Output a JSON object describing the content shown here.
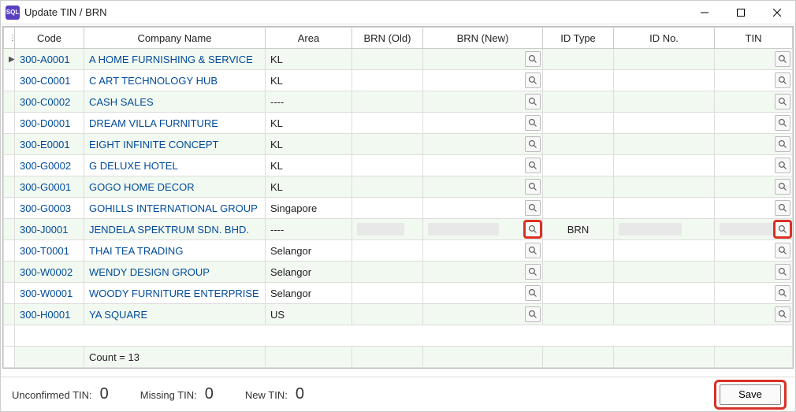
{
  "window": {
    "title": "Update TIN / BRN",
    "app_icon_text": "SQL"
  },
  "columns": {
    "code": "Code",
    "company": "Company Name",
    "area": "Area",
    "brn_old": "BRN (Old)",
    "brn_new": "BRN (New)",
    "id_type": "ID Type",
    "id_no": "ID No.",
    "tin": "TIN"
  },
  "rows": [
    {
      "code": "300-A0001",
      "company": "A HOME FURNISHING & SERVICE",
      "area": "KL",
      "brn_old": "",
      "brn_new": "",
      "id_type": "",
      "id_no": "",
      "tin": "",
      "highlighted": false,
      "has_blur": false
    },
    {
      "code": "300-C0001",
      "company": "C ART TECHNOLOGY HUB",
      "area": "KL",
      "brn_old": "",
      "brn_new": "",
      "id_type": "",
      "id_no": "",
      "tin": "",
      "highlighted": false,
      "has_blur": false
    },
    {
      "code": "300-C0002",
      "company": "CASH SALES",
      "area": "----",
      "brn_old": "",
      "brn_new": "",
      "id_type": "",
      "id_no": "",
      "tin": "",
      "highlighted": false,
      "has_blur": false
    },
    {
      "code": "300-D0001",
      "company": "DREAM VILLA FURNITURE",
      "area": "KL",
      "brn_old": "",
      "brn_new": "",
      "id_type": "",
      "id_no": "",
      "tin": "",
      "highlighted": false,
      "has_blur": false
    },
    {
      "code": "300-E0001",
      "company": "EIGHT INFINITE CONCEPT",
      "area": "KL",
      "brn_old": "",
      "brn_new": "",
      "id_type": "",
      "id_no": "",
      "tin": "",
      "highlighted": false,
      "has_blur": false
    },
    {
      "code": "300-G0002",
      "company": "G DELUXE HOTEL",
      "area": "KL",
      "brn_old": "",
      "brn_new": "",
      "id_type": "",
      "id_no": "",
      "tin": "",
      "highlighted": false,
      "has_blur": false
    },
    {
      "code": "300-G0001",
      "company": "GOGO HOME DECOR",
      "area": "KL",
      "brn_old": "",
      "brn_new": "",
      "id_type": "",
      "id_no": "",
      "tin": "",
      "highlighted": false,
      "has_blur": false
    },
    {
      "code": "300-G0003",
      "company": "GOHILLS INTERNATIONAL GROUP",
      "area": "Singapore",
      "brn_old": "",
      "brn_new": "",
      "id_type": "",
      "id_no": "",
      "tin": "",
      "highlighted": false,
      "has_blur": false
    },
    {
      "code": "300-J0001",
      "company": "JENDELA SPEKTRUM SDN. BHD.",
      "area": "----",
      "brn_old": "",
      "brn_new": "",
      "id_type": "BRN",
      "id_no": "",
      "tin": "",
      "highlighted": true,
      "has_blur": true
    },
    {
      "code": "300-T0001",
      "company": "THAI TEA TRADING",
      "area": "Selangor",
      "brn_old": "",
      "brn_new": "",
      "id_type": "",
      "id_no": "",
      "tin": "",
      "highlighted": false,
      "has_blur": false
    },
    {
      "code": "300-W0002",
      "company": "WENDY DESIGN GROUP",
      "area": "Selangor",
      "brn_old": "",
      "brn_new": "",
      "id_type": "",
      "id_no": "",
      "tin": "",
      "highlighted": false,
      "has_blur": false
    },
    {
      "code": "300-W0001",
      "company": "WOODY FURNITURE ENTERPRISE",
      "area": "Selangor",
      "brn_old": "",
      "brn_new": "",
      "id_type": "",
      "id_no": "",
      "tin": "",
      "highlighted": false,
      "has_blur": false
    },
    {
      "code": "300-H0001",
      "company": "YA SQUARE",
      "area": "US",
      "brn_old": "",
      "brn_new": "",
      "id_type": "",
      "id_no": "",
      "tin": "",
      "highlighted": false,
      "has_blur": false
    }
  ],
  "count_label": "Count = 13",
  "footer": {
    "unconfirmed_label": "Unconfirmed TIN:",
    "unconfirmed_value": "0",
    "missing_label": "Missing TIN:",
    "missing_value": "0",
    "new_label": "New TIN:",
    "new_value": "0",
    "save_label": "Save"
  },
  "colors": {
    "row_alt": "#f2f9f1",
    "link": "#004b9a",
    "highlight_border": "#d93025",
    "window_border": "#cccccc",
    "app_icon_bg": "#5a3fc0"
  }
}
